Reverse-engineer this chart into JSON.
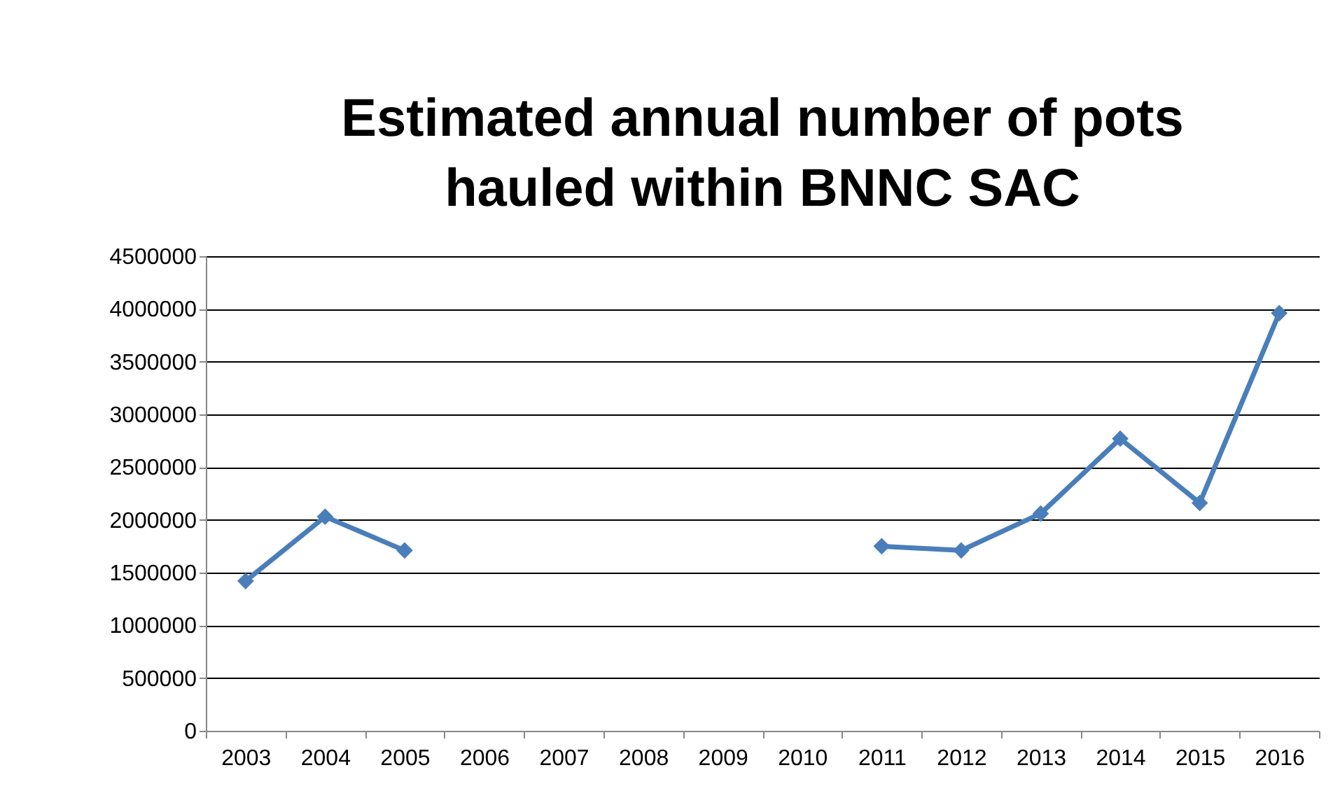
{
  "chart_data": {
    "type": "line",
    "title": "Estimated annual number of pots hauled within BNNC SAC",
    "categories": [
      "2003",
      "2004",
      "2005",
      "2006",
      "2007",
      "2008",
      "2009",
      "2010",
      "2011",
      "2012",
      "2013",
      "2014",
      "2015",
      "2016"
    ],
    "series": [
      {
        "color": "#4a7ebb",
        "values": [
          1420000,
          2030000,
          1710000,
          null,
          null,
          null,
          null,
          null,
          1750000,
          1710000,
          2060000,
          2770000,
          2160000,
          3960000
        ]
      }
    ],
    "ylim": [
      0,
      4500000
    ],
    "yticks": [
      0,
      500000,
      1000000,
      1500000,
      2000000,
      2500000,
      3000000,
      3500000,
      4000000,
      4500000
    ],
    "grid": "y",
    "marker": "diamond",
    "line_style": "solid"
  }
}
